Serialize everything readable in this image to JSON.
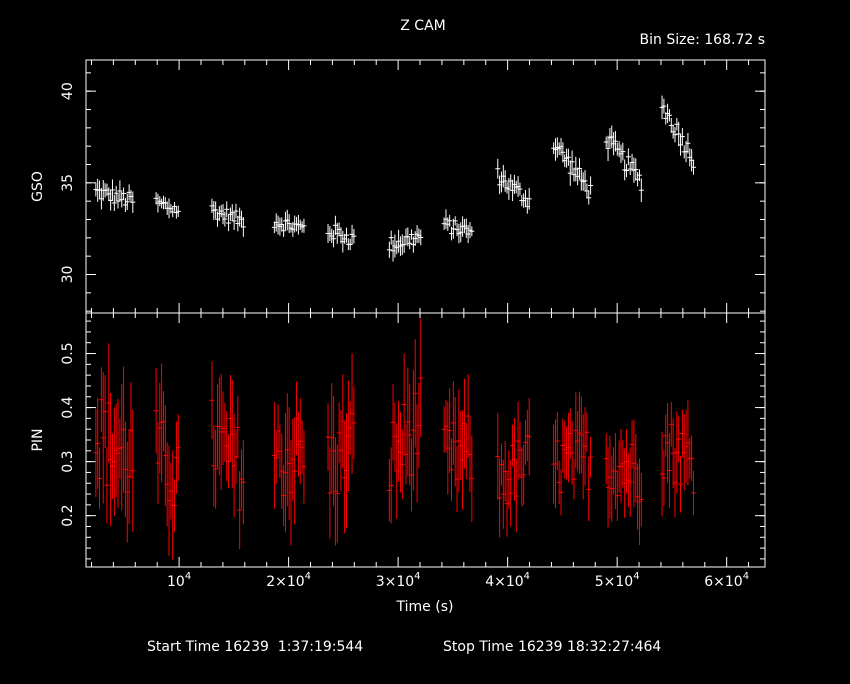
{
  "chart_data": {
    "type": "scatter",
    "title": "Z CAM",
    "subtitle": "Bin Size: 168.72 s",
    "xlabel": "Time (s)",
    "xlim": [
      1500,
      63500
    ],
    "x_ticks": [
      {
        "value": 10000,
        "base": "10",
        "exp": "4"
      },
      {
        "value": 20000,
        "base": "2×10",
        "exp": "4"
      },
      {
        "value": 30000,
        "base": "3×10",
        "exp": "4"
      },
      {
        "value": 40000,
        "base": "4×10",
        "exp": "4"
      },
      {
        "value": 50000,
        "base": "5×10",
        "exp": "4"
      },
      {
        "value": 60000,
        "base": "6×10",
        "exp": "4"
      }
    ],
    "footer": {
      "start_label": "Start Time 16239  1:37:19:544",
      "stop_label": "Stop Time 16239 18:32:27:464"
    },
    "panels": [
      {
        "name": "GSO",
        "ylabel": "GSO",
        "ylim": [
          27.9,
          41.7
        ],
        "y_ticks": [
          30,
          35,
          40
        ],
        "color": "#ffffff",
        "segments": [
          {
            "x": [
              2400,
              5800
            ],
            "y": [
              34.5,
              34.0
            ],
            "err": 0.45
          },
          {
            "x": [
              7900,
              10000
            ],
            "y": [
              33.9,
              33.5
            ],
            "err": 0.4
          },
          {
            "x": [
              13000,
              16000
            ],
            "y": [
              33.5,
              32.9
            ],
            "err": 0.4
          },
          {
            "x": [
              18700,
              21500
            ],
            "y": [
              32.9,
              32.5
            ],
            "err": 0.4
          },
          {
            "x": [
              23600,
              26000
            ],
            "y": [
              32.4,
              31.9
            ],
            "err": 0.45
          },
          {
            "x": [
              29200,
              32200
            ],
            "y": [
              31.6,
              32.1
            ],
            "err": 0.45
          },
          {
            "x": [
              34200,
              36800
            ],
            "y": [
              32.7,
              32.3
            ],
            "err": 0.4
          },
          {
            "x": [
              39100,
              42000
            ],
            "y": [
              35.4,
              34.0
            ],
            "err": 0.45
          },
          {
            "x": [
              44200,
              47700
            ],
            "y": [
              37.2,
              34.4
            ],
            "err": 0.5
          },
          {
            "x": [
              49000,
              52300
            ],
            "y": [
              37.4,
              35.0
            ],
            "err": 0.5
          },
          {
            "x": [
              54100,
              57000
            ],
            "y": [
              39.2,
              36.3
            ],
            "err": 0.5
          }
        ]
      },
      {
        "name": "PIN",
        "ylabel": "PIN",
        "ylim": [
          0.105,
          0.575
        ],
        "y_ticks": [
          0.2,
          0.3,
          0.4,
          0.5
        ],
        "color": "#ff0000",
        "segments": [
          {
            "x": [
              2400,
              5800
            ],
            "y": [
              0.35,
              0.3
            ],
            "err": 0.09
          },
          {
            "x": [
              7900,
              10000
            ],
            "y": [
              0.32,
              0.26
            ],
            "err": 0.08
          },
          {
            "x": [
              13000,
              16000
            ],
            "y": [
              0.34,
              0.28
            ],
            "err": 0.08
          },
          {
            "x": [
              18700,
              21500
            ],
            "y": [
              0.3,
              0.32
            ],
            "err": 0.08
          },
          {
            "x": [
              23600,
              26000
            ],
            "y": [
              0.29,
              0.33
            ],
            "err": 0.08
          },
          {
            "x": [
              29200,
              32200
            ],
            "y": [
              0.3,
              0.38
            ],
            "err": 0.08
          },
          {
            "x": [
              34200,
              36800
            ],
            "y": [
              0.3,
              0.32
            ],
            "err": 0.07
          },
          {
            "x": [
              39100,
              42000
            ],
            "y": [
              0.26,
              0.3
            ],
            "err": 0.06
          },
          {
            "x": [
              44200,
              47700
            ],
            "y": [
              0.29,
              0.31
            ],
            "err": 0.06
          },
          {
            "x": [
              49000,
              52300
            ],
            "y": [
              0.3,
              0.28
            ],
            "err": 0.06
          },
          {
            "x": [
              54100,
              57000
            ],
            "y": [
              0.33,
              0.3
            ],
            "err": 0.06
          }
        ]
      }
    ]
  }
}
